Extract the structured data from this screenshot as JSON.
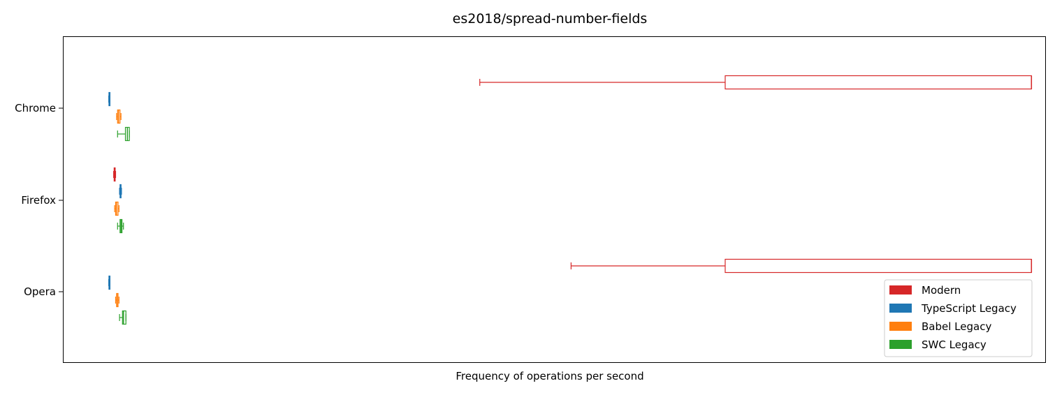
{
  "chart_data": {
    "type": "boxplot",
    "orientation": "horizontal",
    "title": "es2018/spread-number-fields",
    "xlabel": "Frequency of operations per second",
    "ylabel": "",
    "x_ticks_visible": false,
    "xlim": [
      0,
      100
    ],
    "grid": false,
    "legend_position": "lower-right",
    "categories": [
      "Chrome",
      "Firefox",
      "Opera"
    ],
    "series": [
      {
        "name": "Modern",
        "color": "#d62728",
        "boxes": [
          {
            "category": "Chrome",
            "whisker_low": 42.4,
            "q1": 67.4,
            "median": 98.6,
            "q3": 98.6,
            "whisker_high": 98.6
          },
          {
            "category": "Firefox",
            "whisker_low": 5.1,
            "q1": 5.15,
            "median": 5.2,
            "q3": 5.25,
            "whisker_high": 5.3
          },
          {
            "category": "Opera",
            "whisker_low": 51.7,
            "q1": 67.4,
            "median": 98.6,
            "q3": 98.6,
            "whisker_high": 98.6
          }
        ]
      },
      {
        "name": "TypeScript Legacy",
        "color": "#1f77b4",
        "boxes": [
          {
            "category": "Chrome",
            "whisker_low": 4.6,
            "q1": 4.62,
            "median": 4.65,
            "q3": 4.68,
            "whisker_high": 4.7
          },
          {
            "category": "Firefox",
            "whisker_low": 5.7,
            "q1": 5.75,
            "median": 5.8,
            "q3": 5.85,
            "whisker_high": 5.9
          },
          {
            "category": "Opera",
            "whisker_low": 4.6,
            "q1": 4.62,
            "median": 4.65,
            "q3": 4.68,
            "whisker_high": 4.7
          }
        ]
      },
      {
        "name": "Babel Legacy",
        "color": "#ff7f0e",
        "boxes": [
          {
            "category": "Chrome",
            "whisker_low": 5.4,
            "q1": 5.5,
            "median": 5.6,
            "q3": 5.75,
            "whisker_high": 5.85
          },
          {
            "category": "Firefox",
            "whisker_low": 5.2,
            "q1": 5.3,
            "median": 5.4,
            "q3": 5.55,
            "whisker_high": 5.65
          },
          {
            "category": "Opera",
            "whisker_low": 5.3,
            "q1": 5.4,
            "median": 5.45,
            "q3": 5.55,
            "whisker_high": 5.65
          }
        ]
      },
      {
        "name": "SWC Legacy",
        "color": "#2ca02c",
        "boxes": [
          {
            "category": "Chrome",
            "whisker_low": 5.5,
            "q1": 6.3,
            "median": 6.5,
            "q3": 6.7,
            "whisker_high": 6.7
          },
          {
            "category": "Firefox",
            "whisker_low": 5.5,
            "q1": 5.75,
            "median": 5.85,
            "q3": 5.95,
            "whisker_high": 6.1
          },
          {
            "category": "Opera",
            "whisker_low": 5.7,
            "q1": 6.0,
            "median": 6.1,
            "q3": 6.35,
            "whisker_high": 6.35
          }
        ]
      }
    ]
  }
}
